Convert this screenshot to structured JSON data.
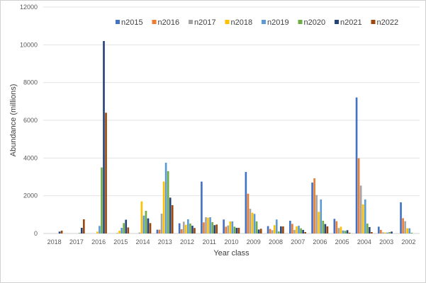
{
  "chart_data": {
    "type": "bar",
    "title": "",
    "xlabel": "Year class",
    "ylabel": "Abundance (millions)",
    "ylim": [
      0,
      12000
    ],
    "yticks": [
      0,
      2000,
      4000,
      6000,
      8000,
      10000,
      12000
    ],
    "grid": true,
    "legend_placement": "top",
    "categories": [
      "2018",
      "2017",
      "2016",
      "2015",
      "2014",
      "2013",
      "2012",
      "2011",
      "2010",
      "2009",
      "2008",
      "2007",
      "2006",
      "2005",
      "2004",
      "2003",
      "2002"
    ],
    "series": [
      {
        "name": "n2015",
        "color": "#4472C4",
        "values": [
          0,
          0,
          0,
          0,
          0,
          200,
          540,
          2750,
          740,
          3260,
          390,
          675,
          2700,
          775,
          7210,
          360,
          1650
        ]
      },
      {
        "name": "n2016",
        "color": "#ED7D31",
        "values": [
          0,
          0,
          0,
          0,
          0,
          200,
          225,
          590,
          360,
          2110,
          240,
          510,
          2925,
          650,
          3990,
          190,
          810
        ]
      },
      {
        "name": "n2017",
        "color": "#A5A5A5",
        "values": [
          0,
          0,
          0,
          30,
          50,
          1050,
          625,
          860,
          425,
          1310,
          175,
          190,
          2040,
          290,
          2540,
          60,
          650
        ]
      },
      {
        "name": "n2018",
        "color": "#FFC000",
        "values": [
          0,
          0,
          100,
          150,
          1700,
          2750,
          460,
          840,
          640,
          1100,
          440,
          375,
          1150,
          360,
          1540,
          50,
          275
        ]
      },
      {
        "name": "n2019",
        "color": "#5B9BD5",
        "values": [
          0,
          0,
          400,
          300,
          950,
          3750,
          750,
          860,
          640,
          1040,
          740,
          410,
          1800,
          160,
          1800,
          50,
          275
        ]
      },
      {
        "name": "n2020",
        "color": "#70AD47",
        "values": [
          0,
          30,
          3500,
          550,
          1200,
          3300,
          525,
          600,
          360,
          640,
          110,
          275,
          675,
          140,
          525,
          75,
          40
        ]
      },
      {
        "name": "n2021",
        "color": "#264478",
        "values": [
          100,
          300,
          10200,
          730,
          800,
          1900,
          410,
          440,
          300,
          210,
          375,
          190,
          500,
          175,
          340,
          100,
          0
        ]
      },
      {
        "name": "n2022",
        "color": "#9E480E",
        "values": [
          150,
          750,
          6400,
          320,
          550,
          1500,
          290,
          475,
          300,
          250,
          375,
          75,
          375,
          40,
          75,
          0,
          0
        ]
      }
    ]
  }
}
